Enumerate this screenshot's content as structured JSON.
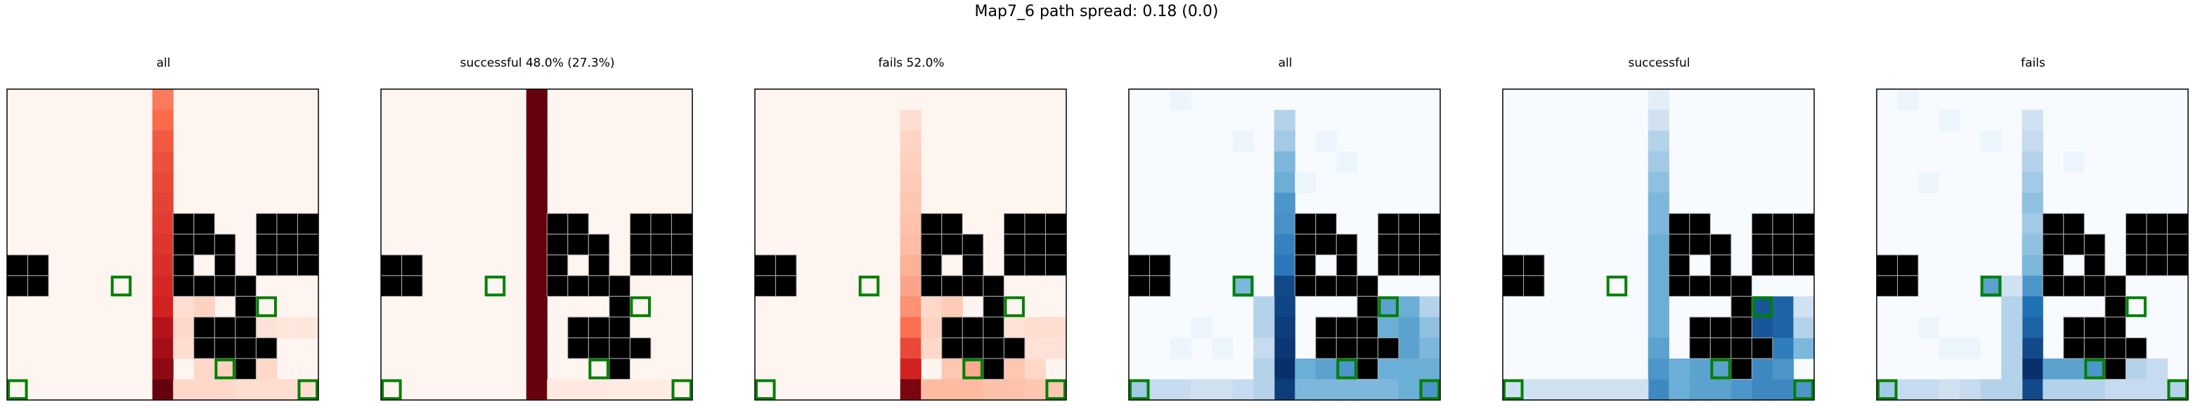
{
  "suptitle": "Map7_6 path spread: 0.18 (0.0)",
  "colors": {
    "obstacle": "#000000",
    "goal": "#008000",
    "grid": "#b0b0b0",
    "frame": "#000000"
  },
  "chart_data": {
    "type": "heatmap",
    "grid_size": 15,
    "obstacles": [
      [
        8,
        6
      ],
      [
        9,
        6
      ],
      [
        8,
        7
      ],
      [
        9,
        7
      ],
      [
        10,
        7
      ],
      [
        8,
        8
      ],
      [
        10,
        8
      ],
      [
        8,
        9
      ],
      [
        9,
        9
      ],
      [
        10,
        9
      ],
      [
        12,
        6
      ],
      [
        13,
        6
      ],
      [
        14,
        6
      ],
      [
        12,
        7
      ],
      [
        13,
        7
      ],
      [
        14,
        7
      ],
      [
        14,
        8
      ],
      [
        12,
        8
      ],
      [
        13,
        8
      ],
      [
        11,
        9
      ],
      [
        11,
        10
      ],
      [
        9,
        11
      ],
      [
        10,
        11
      ],
      [
        11,
        11
      ],
      [
        9,
        12
      ],
      [
        10,
        12
      ],
      [
        11,
        12
      ],
      [
        12,
        12
      ],
      [
        11,
        13
      ],
      [
        0,
        8
      ],
      [
        1,
        8
      ],
      [
        0,
        9
      ],
      [
        1,
        9
      ]
    ],
    "goals": [
      [
        5,
        9
      ],
      [
        12,
        10
      ],
      [
        10,
        13
      ],
      [
        0,
        14
      ],
      [
        14,
        14
      ]
    ],
    "panels": [
      {
        "title": "all",
        "cmap": "Reds",
        "cells": [
          [
            7,
            0,
            0.45
          ],
          [
            7,
            1,
            0.5
          ],
          [
            7,
            2,
            0.55
          ],
          [
            7,
            3,
            0.58
          ],
          [
            7,
            4,
            0.6
          ],
          [
            7,
            5,
            0.62
          ],
          [
            7,
            6,
            0.64
          ],
          [
            7,
            7,
            0.66
          ],
          [
            7,
            8,
            0.68
          ],
          [
            7,
            9,
            0.7
          ],
          [
            7,
            10,
            0.72
          ],
          [
            7,
            11,
            0.8
          ],
          [
            7,
            12,
            0.85
          ],
          [
            7,
            13,
            0.9
          ],
          [
            7,
            14,
            1.0
          ],
          [
            8,
            10,
            0.1
          ],
          [
            9,
            10,
            0.15
          ],
          [
            8,
            11,
            0.12
          ],
          [
            8,
            12,
            0.1
          ],
          [
            9,
            13,
            0.12
          ],
          [
            10,
            13,
            0.15
          ],
          [
            11,
            13,
            0.2
          ],
          [
            12,
            13,
            0.12
          ],
          [
            8,
            14,
            0.12
          ],
          [
            9,
            14,
            0.12
          ],
          [
            10,
            14,
            0.12
          ],
          [
            11,
            14,
            0.1
          ],
          [
            12,
            14,
            0.1
          ],
          [
            13,
            14,
            0.1
          ],
          [
            14,
            14,
            0.1
          ],
          [
            12,
            11,
            0.08
          ],
          [
            13,
            11,
            0.06
          ],
          [
            14,
            11,
            0.06
          ]
        ]
      },
      {
        "title": "successful 48.0% (27.3%)",
        "cmap": "Reds",
        "cells": [
          [
            7,
            0,
            1
          ],
          [
            7,
            1,
            1
          ],
          [
            7,
            2,
            1
          ],
          [
            7,
            3,
            1
          ],
          [
            7,
            4,
            1
          ],
          [
            7,
            5,
            1
          ],
          [
            7,
            6,
            1
          ],
          [
            7,
            7,
            1
          ],
          [
            7,
            8,
            1
          ],
          [
            7,
            9,
            1
          ],
          [
            7,
            10,
            1
          ],
          [
            7,
            11,
            1
          ],
          [
            7,
            12,
            1
          ],
          [
            7,
            13,
            1
          ],
          [
            7,
            14,
            1
          ],
          [
            8,
            14,
            0.05
          ],
          [
            9,
            14,
            0.05
          ],
          [
            10,
            14,
            0.05
          ],
          [
            11,
            14,
            0.04
          ],
          [
            12,
            14,
            0.04
          ],
          [
            13,
            14,
            0.04
          ]
        ]
      },
      {
        "title": "fails 52.0%",
        "cmap": "Reds",
        "cells": [
          [
            7,
            1,
            0.1
          ],
          [
            7,
            2,
            0.14
          ],
          [
            7,
            3,
            0.16
          ],
          [
            7,
            4,
            0.18
          ],
          [
            7,
            5,
            0.2
          ],
          [
            7,
            6,
            0.22
          ],
          [
            7,
            7,
            0.24
          ],
          [
            7,
            8,
            0.28
          ],
          [
            7,
            9,
            0.32
          ],
          [
            7,
            10,
            0.38
          ],
          [
            7,
            11,
            0.48
          ],
          [
            7,
            12,
            0.6
          ],
          [
            7,
            13,
            0.72
          ],
          [
            7,
            14,
            0.95
          ],
          [
            8,
            10,
            0.12
          ],
          [
            9,
            10,
            0.18
          ],
          [
            8,
            11,
            0.15
          ],
          [
            8,
            12,
            0.12
          ],
          [
            9,
            13,
            0.2
          ],
          [
            10,
            13,
            0.3
          ],
          [
            11,
            13,
            0.3
          ],
          [
            12,
            13,
            0.2
          ],
          [
            13,
            13,
            0.12
          ],
          [
            8,
            14,
            0.25
          ],
          [
            9,
            14,
            0.25
          ],
          [
            10,
            14,
            0.25
          ],
          [
            11,
            14,
            0.22
          ],
          [
            12,
            14,
            0.22
          ],
          [
            13,
            14,
            0.2
          ],
          [
            14,
            14,
            0.2
          ],
          [
            12,
            11,
            0.08
          ],
          [
            13,
            11,
            0.1
          ],
          [
            14,
            11,
            0.1
          ],
          [
            13,
            12,
            0.08
          ],
          [
            14,
            12,
            0.08
          ]
        ]
      },
      {
        "title": "all",
        "cmap": "Blues",
        "cells": [
          [
            7,
            1,
            0.3
          ],
          [
            7,
            2,
            0.35
          ],
          [
            7,
            3,
            0.45
          ],
          [
            7,
            4,
            0.5
          ],
          [
            7,
            5,
            0.6
          ],
          [
            7,
            6,
            0.62
          ],
          [
            7,
            7,
            0.68
          ],
          [
            7,
            8,
            0.72
          ],
          [
            7,
            9,
            0.9
          ],
          [
            7,
            10,
            0.92
          ],
          [
            7,
            11,
            0.95
          ],
          [
            7,
            12,
            0.97
          ],
          [
            7,
            13,
            1.0
          ],
          [
            7,
            14,
            0.95
          ],
          [
            6,
            10,
            0.3
          ],
          [
            6,
            11,
            0.3
          ],
          [
            6,
            12,
            0.25
          ],
          [
            6,
            13,
            0.3
          ],
          [
            6,
            14,
            0.3
          ],
          [
            5,
            9,
            0.45
          ],
          [
            12,
            10,
            0.55
          ],
          [
            13,
            10,
            0.5
          ],
          [
            14,
            10,
            0.3
          ],
          [
            12,
            11,
            0.5
          ],
          [
            13,
            11,
            0.55
          ],
          [
            14,
            11,
            0.4
          ],
          [
            12,
            12,
            0.45
          ],
          [
            13,
            12,
            0.55
          ],
          [
            14,
            12,
            0.45
          ],
          [
            8,
            13,
            0.5
          ],
          [
            9,
            13,
            0.55
          ],
          [
            10,
            13,
            0.6
          ],
          [
            11,
            13,
            0.55
          ],
          [
            12,
            13,
            0.5
          ],
          [
            13,
            13,
            0.5
          ],
          [
            14,
            13,
            0.5
          ],
          [
            8,
            14,
            0.45
          ],
          [
            9,
            14,
            0.45
          ],
          [
            10,
            14,
            0.45
          ],
          [
            11,
            14,
            0.45
          ],
          [
            12,
            14,
            0.45
          ],
          [
            13,
            14,
            0.5
          ],
          [
            14,
            14,
            0.6
          ],
          [
            0,
            14,
            0.35
          ],
          [
            1,
            14,
            0.25
          ],
          [
            2,
            14,
            0.25
          ],
          [
            3,
            14,
            0.2
          ],
          [
            4,
            14,
            0.2
          ],
          [
            5,
            14,
            0.25
          ],
          [
            2,
            0,
            0.05
          ],
          [
            5,
            2,
            0.05
          ],
          [
            8,
            4,
            0.05
          ],
          [
            3,
            11,
            0.05
          ],
          [
            4,
            12,
            0.05
          ],
          [
            2,
            12,
            0.05
          ],
          [
            9,
            2,
            0.05
          ],
          [
            10,
            3,
            0.05
          ]
        ]
      },
      {
        "title": "successful",
        "cmap": "Blues",
        "cells": [
          [
            7,
            0,
            0.1
          ],
          [
            7,
            1,
            0.2
          ],
          [
            7,
            2,
            0.3
          ],
          [
            7,
            3,
            0.35
          ],
          [
            7,
            4,
            0.4
          ],
          [
            7,
            5,
            0.45
          ],
          [
            7,
            6,
            0.45
          ],
          [
            7,
            7,
            0.5
          ],
          [
            7,
            8,
            0.5
          ],
          [
            7,
            9,
            0.5
          ],
          [
            7,
            10,
            0.5
          ],
          [
            7,
            11,
            0.5
          ],
          [
            7,
            12,
            0.55
          ],
          [
            7,
            13,
            0.6
          ],
          [
            7,
            14,
            0.65
          ],
          [
            8,
            13,
            0.5
          ],
          [
            9,
            13,
            0.55
          ],
          [
            10,
            13,
            0.55
          ],
          [
            11,
            13,
            0.55
          ],
          [
            12,
            13,
            0.65
          ],
          [
            13,
            13,
            0.6
          ],
          [
            8,
            14,
            0.5
          ],
          [
            9,
            14,
            0.55
          ],
          [
            10,
            14,
            0.55
          ],
          [
            11,
            14,
            0.6
          ],
          [
            12,
            14,
            0.65
          ],
          [
            13,
            14,
            0.65
          ],
          [
            14,
            14,
            0.6
          ],
          [
            12,
            10,
            0.85
          ],
          [
            13,
            10,
            0.8
          ],
          [
            12,
            11,
            0.85
          ],
          [
            13,
            11,
            0.8
          ],
          [
            12,
            12,
            0.75
          ],
          [
            13,
            12,
            0.7
          ],
          [
            14,
            12,
            0.45
          ],
          [
            14,
            11,
            0.3
          ],
          [
            14,
            10,
            0.2
          ],
          [
            0,
            14,
            0.2
          ],
          [
            1,
            14,
            0.2
          ],
          [
            2,
            14,
            0.2
          ],
          [
            3,
            14,
            0.2
          ],
          [
            4,
            14,
            0.2
          ],
          [
            5,
            14,
            0.2
          ],
          [
            6,
            14,
            0.2
          ]
        ]
      },
      {
        "title": "fails",
        "cmap": "Blues",
        "cells": [
          [
            7,
            1,
            0.2
          ],
          [
            7,
            2,
            0.25
          ],
          [
            7,
            3,
            0.3
          ],
          [
            7,
            4,
            0.35
          ],
          [
            7,
            5,
            0.4
          ],
          [
            7,
            6,
            0.35
          ],
          [
            7,
            7,
            0.4
          ],
          [
            7,
            8,
            0.45
          ],
          [
            7,
            9,
            0.6
          ],
          [
            7,
            10,
            0.75
          ],
          [
            7,
            11,
            0.8
          ],
          [
            7,
            12,
            0.9
          ],
          [
            7,
            13,
            1.0
          ],
          [
            7,
            14,
            0.9
          ],
          [
            6,
            9,
            0.2
          ],
          [
            6,
            10,
            0.3
          ],
          [
            6,
            11,
            0.3
          ],
          [
            6,
            12,
            0.3
          ],
          [
            6,
            13,
            0.3
          ],
          [
            6,
            14,
            0.3
          ],
          [
            5,
            9,
            0.55
          ],
          [
            8,
            13,
            0.55
          ],
          [
            9,
            13,
            0.55
          ],
          [
            10,
            13,
            0.6
          ],
          [
            11,
            13,
            0.35
          ],
          [
            12,
            13,
            0.3
          ],
          [
            13,
            13,
            0.25
          ],
          [
            8,
            14,
            0.3
          ],
          [
            9,
            14,
            0.3
          ],
          [
            10,
            14,
            0.3
          ],
          [
            11,
            14,
            0.25
          ],
          [
            12,
            14,
            0.25
          ],
          [
            13,
            14,
            0.25
          ],
          [
            14,
            14,
            0.3
          ],
          [
            0,
            14,
            0.35
          ],
          [
            1,
            14,
            0.25
          ],
          [
            2,
            14,
            0.25
          ],
          [
            3,
            14,
            0.2
          ],
          [
            4,
            14,
            0.25
          ],
          [
            5,
            14,
            0.3
          ],
          [
            1,
            0,
            0.05
          ],
          [
            3,
            1,
            0.05
          ],
          [
            5,
            2,
            0.05
          ],
          [
            2,
            4,
            0.05
          ],
          [
            9,
            3,
            0.05
          ],
          [
            4,
            12,
            0.05
          ],
          [
            2,
            11,
            0.05
          ],
          [
            3,
            12,
            0.05
          ]
        ]
      }
    ]
  }
}
